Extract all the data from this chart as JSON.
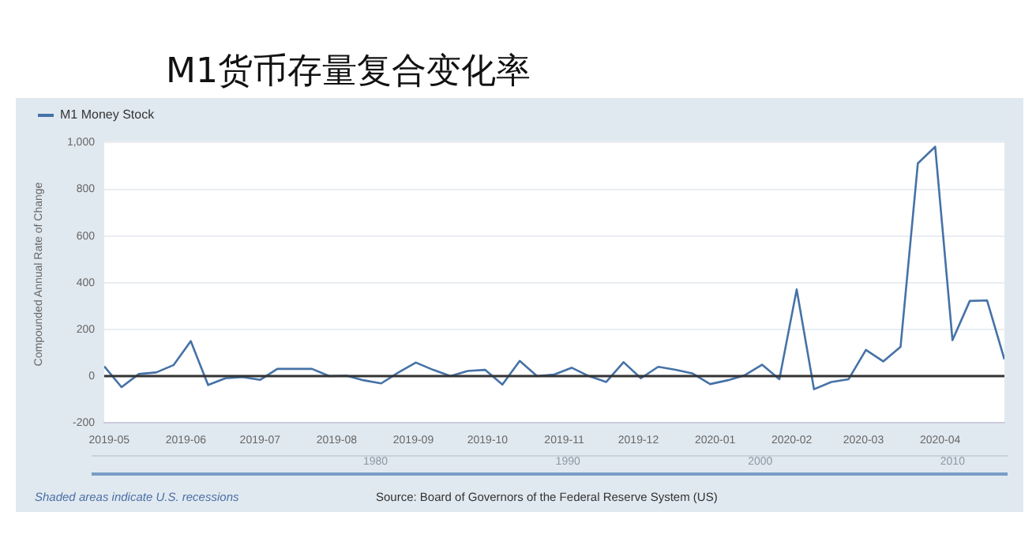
{
  "chart_data": {
    "type": "line",
    "title": "M1货币存量复合变化率",
    "ylabel": "Compounded Annual Rate of Change",
    "x": [
      "2019-04-29",
      "2019-05-06",
      "2019-05-13",
      "2019-05-20",
      "2019-05-27",
      "2019-06-03",
      "2019-06-10",
      "2019-06-17",
      "2019-06-24",
      "2019-07-01",
      "2019-07-08",
      "2019-07-15",
      "2019-07-22",
      "2019-07-29",
      "2019-08-05",
      "2019-08-12",
      "2019-08-19",
      "2019-08-26",
      "2019-09-02",
      "2019-09-09",
      "2019-09-16",
      "2019-09-23",
      "2019-09-30",
      "2019-10-07",
      "2019-10-14",
      "2019-10-21",
      "2019-10-28",
      "2019-11-04",
      "2019-11-11",
      "2019-11-18",
      "2019-11-25",
      "2019-12-02",
      "2019-12-09",
      "2019-12-16",
      "2019-12-23",
      "2019-12-30",
      "2020-01-06",
      "2020-01-13",
      "2020-01-20",
      "2020-01-27",
      "2020-02-03",
      "2020-02-10",
      "2020-02-17",
      "2020-02-24",
      "2020-03-02",
      "2020-03-09",
      "2020-03-16",
      "2020-03-23",
      "2020-03-30",
      "2020-04-06",
      "2020-04-13",
      "2020-04-20",
      "2020-04-27"
    ],
    "series": [
      {
        "name": "M1 Money Stock",
        "color": "#4572a7",
        "values": [
          42,
          -47,
          9,
          16,
          47,
          150,
          -38,
          -9,
          -4,
          -16,
          31,
          31,
          31,
          0,
          2,
          -18,
          -31,
          16,
          58,
          27,
          0,
          22,
          27,
          -36,
          65,
          0,
          7,
          36,
          0,
          -25,
          60,
          -9,
          40,
          27,
          11,
          -34,
          -18,
          4,
          49,
          -13,
          371,
          -56,
          -25,
          -13,
          112,
          63,
          125,
          911,
          982,
          154,
          322,
          324,
          72
        ]
      }
    ],
    "xlim": [
      "2019-04-29",
      "2020-04-27"
    ],
    "xticks": [
      "2019-05",
      "2019-06",
      "2019-07",
      "2019-08",
      "2019-09",
      "2019-10",
      "2019-11",
      "2019-12",
      "2020-01",
      "2020-02",
      "2020-03",
      "2020-04"
    ],
    "ylim": [
      -200,
      1000
    ],
    "yticks": [
      -200,
      0,
      200,
      400,
      600,
      800,
      {
        "value": 1000,
        "label": "1,000"
      }
    ],
    "ref_lines": [
      {
        "axis": "y",
        "value": 0,
        "color": "#333333"
      }
    ],
    "grid": "y",
    "legend": "top left",
    "marker": "none",
    "line_style": "solid",
    "annotations": [
      "Shaded areas indicate U.S. recessions",
      "Source: Board of Governors of the Federal Reserve System (US)",
      "1980",
      "1990",
      "2000",
      "2010"
    ]
  }
}
